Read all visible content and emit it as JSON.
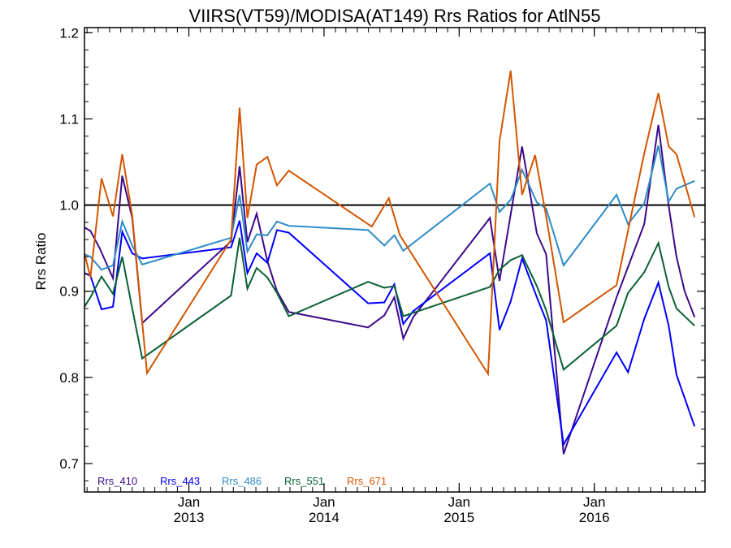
{
  "chart_data": {
    "type": "line",
    "title": "VIIRS(VT59)/MODISA(AT149)  Rrs Ratios for AtlN55",
    "xlabel": "",
    "ylabel": "Rrs Ratio",
    "xlim": [
      "2012-03-25",
      "2016-10-26"
    ],
    "ylim": [
      0.667,
      1.206
    ],
    "y_ticks": [
      0.7,
      0.8,
      0.9,
      1.0,
      1.1,
      1.2
    ],
    "y_tick_labels": [
      "0.7",
      "0.8",
      "0.9",
      "1.0",
      "1.1",
      "1.2"
    ],
    "x_ticks": [
      {
        "date": "2013-01-01",
        "month": "Jan",
        "year": "2013"
      },
      {
        "date": "2014-01-01",
        "month": "Jan",
        "year": "2014"
      },
      {
        "date": "2015-01-01",
        "month": "Jan",
        "year": "2015"
      },
      {
        "date": "2016-01-01",
        "month": "Jan",
        "year": "2016"
      }
    ],
    "reference_line": 1.0,
    "grid": false,
    "legend_position": "bottom-left",
    "series": [
      {
        "name": "Rrs_410",
        "color": "#3b0a8a",
        "points": [
          [
            "2012-03-25",
            0.974
          ],
          [
            "2012-04-10",
            0.97
          ],
          [
            "2012-05-05",
            0.95
          ],
          [
            "2012-06-10",
            0.915
          ],
          [
            "2012-07-05",
            1.034
          ],
          [
            "2012-08-01",
            0.985
          ],
          [
            "2012-08-28",
            0.863
          ],
          [
            "2013-04-25",
            0.958
          ],
          [
            "2013-05-18",
            1.045
          ],
          [
            "2013-06-08",
            0.957
          ],
          [
            "2013-07-03",
            0.99
          ],
          [
            "2013-08-01",
            0.935
          ],
          [
            "2013-08-27",
            0.9
          ],
          [
            "2013-09-28",
            0.876
          ],
          [
            "2014-04-30",
            0.858
          ],
          [
            "2014-06-13",
            0.872
          ],
          [
            "2014-07-10",
            0.893
          ],
          [
            "2014-08-03",
            0.845
          ],
          [
            "2014-08-30",
            0.87
          ],
          [
            "2015-03-25",
            0.985
          ],
          [
            "2015-04-20",
            0.912
          ],
          [
            "2015-06-20",
            1.068
          ],
          [
            "2015-07-30",
            0.967
          ],
          [
            "2015-08-24",
            0.943
          ],
          [
            "2015-10-10",
            0.711
          ],
          [
            "2016-03-01",
            0.893
          ],
          [
            "2016-05-15",
            0.978
          ],
          [
            "2016-06-22",
            1.093
          ],
          [
            "2016-07-20",
            0.999
          ],
          [
            "2016-08-10",
            0.94
          ],
          [
            "2016-09-01",
            0.9
          ],
          [
            "2016-09-28",
            0.87
          ]
        ]
      },
      {
        "name": "Rrs_443",
        "color": "#0000ff",
        "points": [
          [
            "2012-03-25",
            0.921
          ],
          [
            "2012-04-10",
            0.918
          ],
          [
            "2012-05-10",
            0.879
          ],
          [
            "2012-06-10",
            0.882
          ],
          [
            "2012-07-05",
            0.969
          ],
          [
            "2012-08-01",
            0.944
          ],
          [
            "2012-08-28",
            0.938
          ],
          [
            "2013-04-25",
            0.951
          ],
          [
            "2013-05-18",
            0.982
          ],
          [
            "2013-06-08",
            0.921
          ],
          [
            "2013-07-03",
            0.944
          ],
          [
            "2013-08-01",
            0.933
          ],
          [
            "2013-08-27",
            0.971
          ],
          [
            "2013-09-28",
            0.968
          ],
          [
            "2014-04-30",
            0.886
          ],
          [
            "2014-06-13",
            0.887
          ],
          [
            "2014-07-10",
            0.908
          ],
          [
            "2014-08-03",
            0.862
          ],
          [
            "2014-08-30",
            0.877
          ],
          [
            "2015-03-25",
            0.944
          ],
          [
            "2015-04-20",
            0.855
          ],
          [
            "2015-05-20",
            0.888
          ],
          [
            "2015-06-20",
            0.938
          ],
          [
            "2015-07-30",
            0.893
          ],
          [
            "2015-08-24",
            0.866
          ],
          [
            "2015-10-10",
            0.722
          ],
          [
            "2016-03-01",
            0.829
          ],
          [
            "2016-04-01",
            0.806
          ],
          [
            "2016-05-15",
            0.868
          ],
          [
            "2016-06-22",
            0.91
          ],
          [
            "2016-07-20",
            0.86
          ],
          [
            "2016-08-10",
            0.803
          ],
          [
            "2016-09-28",
            0.743
          ]
        ]
      },
      {
        "name": "Rrs_486",
        "color": "#2e8bc8",
        "points": [
          [
            "2012-03-25",
            0.943
          ],
          [
            "2012-04-10",
            0.94
          ],
          [
            "2012-05-10",
            0.925
          ],
          [
            "2012-06-10",
            0.93
          ],
          [
            "2012-07-05",
            0.981
          ],
          [
            "2012-08-01",
            0.953
          ],
          [
            "2012-08-28",
            0.931
          ],
          [
            "2013-04-25",
            0.962
          ],
          [
            "2013-05-18",
            1.012
          ],
          [
            "2013-06-08",
            0.946
          ],
          [
            "2013-07-03",
            0.966
          ],
          [
            "2013-08-01",
            0.965
          ],
          [
            "2013-08-27",
            0.981
          ],
          [
            "2013-09-28",
            0.976
          ],
          [
            "2014-04-30",
            0.971
          ],
          [
            "2014-06-13",
            0.953
          ],
          [
            "2014-07-10",
            0.965
          ],
          [
            "2014-08-03",
            0.947
          ],
          [
            "2015-03-25",
            1.025
          ],
          [
            "2015-04-20",
            0.992
          ],
          [
            "2015-05-20",
            1.006
          ],
          [
            "2015-06-20",
            1.041
          ],
          [
            "2015-07-30",
            1.003
          ],
          [
            "2015-08-24",
            0.996
          ],
          [
            "2015-10-10",
            0.93
          ],
          [
            "2016-03-01",
            1.012
          ],
          [
            "2016-04-01",
            0.978
          ],
          [
            "2016-05-15",
            1.002
          ],
          [
            "2016-06-22",
            1.069
          ],
          [
            "2016-07-20",
            1.004
          ],
          [
            "2016-08-10",
            1.019
          ],
          [
            "2016-09-28",
            1.028
          ]
        ]
      },
      {
        "name": "Rrs_551",
        "color": "#0a6034",
        "points": [
          [
            "2012-03-25",
            0.882
          ],
          [
            "2012-04-10",
            0.893
          ],
          [
            "2012-05-10",
            0.917
          ],
          [
            "2012-06-10",
            0.897
          ],
          [
            "2012-07-05",
            0.94
          ],
          [
            "2012-08-01",
            0.88
          ],
          [
            "2012-08-28",
            0.822
          ],
          [
            "2013-04-25",
            0.895
          ],
          [
            "2013-05-18",
            0.962
          ],
          [
            "2013-06-08",
            0.903
          ],
          [
            "2013-07-03",
            0.927
          ],
          [
            "2013-08-01",
            0.916
          ],
          [
            "2013-08-27",
            0.898
          ],
          [
            "2013-09-28",
            0.871
          ],
          [
            "2014-04-30",
            0.911
          ],
          [
            "2014-06-13",
            0.904
          ],
          [
            "2014-07-10",
            0.906
          ],
          [
            "2014-08-03",
            0.871
          ],
          [
            "2015-03-25",
            0.905
          ],
          [
            "2015-04-20",
            0.925
          ],
          [
            "2015-05-20",
            0.936
          ],
          [
            "2015-06-20",
            0.942
          ],
          [
            "2015-07-30",
            0.906
          ],
          [
            "2015-08-24",
            0.878
          ],
          [
            "2015-10-10",
            0.809
          ],
          [
            "2016-03-01",
            0.86
          ],
          [
            "2016-04-01",
            0.898
          ],
          [
            "2016-05-15",
            0.922
          ],
          [
            "2016-06-22",
            0.956
          ],
          [
            "2016-07-20",
            0.905
          ],
          [
            "2016-08-10",
            0.88
          ],
          [
            "2016-09-28",
            0.86
          ]
        ]
      },
      {
        "name": "Rrs_671",
        "color": "#d45500",
        "points": [
          [
            "2012-03-25",
            0.944
          ],
          [
            "2012-04-10",
            0.916
          ],
          [
            "2012-05-10",
            1.031
          ],
          [
            "2012-06-10",
            0.987
          ],
          [
            "2012-07-05",
            1.059
          ],
          [
            "2012-08-01",
            0.988
          ],
          [
            "2012-09-10",
            0.805
          ],
          [
            "2013-04-25",
            0.96
          ],
          [
            "2013-05-18",
            1.113
          ],
          [
            "2013-06-08",
            0.985
          ],
          [
            "2013-07-03",
            1.047
          ],
          [
            "2013-08-01",
            1.056
          ],
          [
            "2013-08-27",
            1.023
          ],
          [
            "2013-09-28",
            1.04
          ],
          [
            "2014-05-10",
            0.975
          ],
          [
            "2014-06-25",
            1.008
          ],
          [
            "2014-07-25",
            0.965
          ],
          [
            "2015-03-20",
            0.804
          ],
          [
            "2015-04-20",
            1.074
          ],
          [
            "2015-05-20",
            1.156
          ],
          [
            "2015-06-20",
            1.012
          ],
          [
            "2015-07-25",
            1.058
          ],
          [
            "2015-08-24",
            0.987
          ],
          [
            "2015-10-10",
            0.864
          ],
          [
            "2016-03-01",
            0.907
          ],
          [
            "2016-05-15",
            1.06
          ],
          [
            "2016-06-22",
            1.13
          ],
          [
            "2016-07-20",
            1.068
          ],
          [
            "2016-08-10",
            1.059
          ],
          [
            "2016-09-28",
            0.986
          ]
        ]
      }
    ]
  }
}
